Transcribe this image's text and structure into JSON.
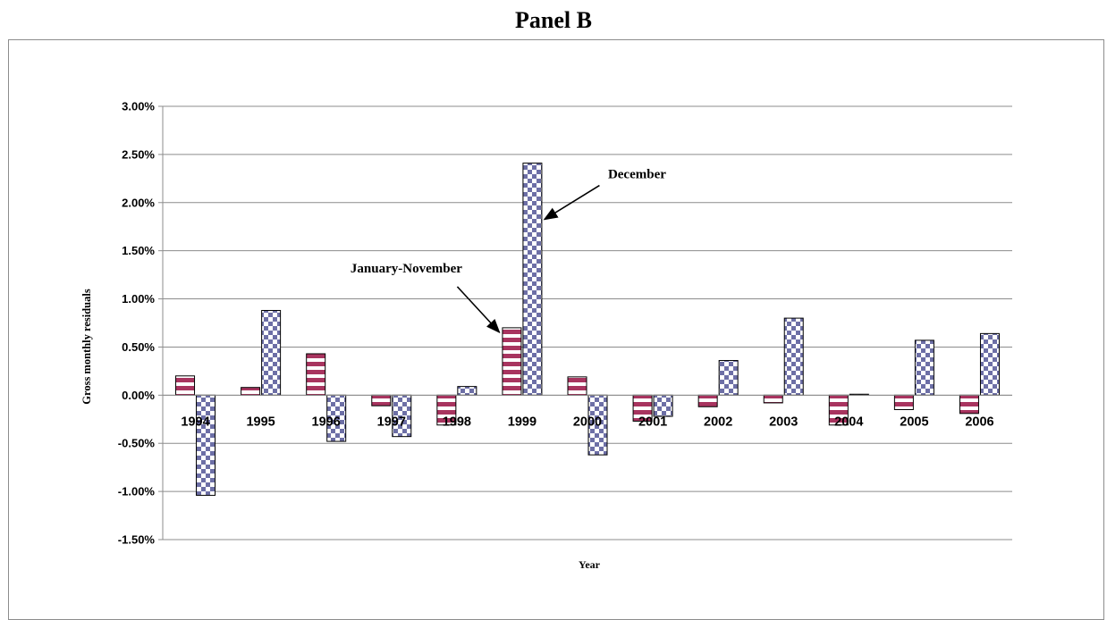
{
  "chart_data": {
    "type": "bar",
    "title": "Panel B",
    "xlabel": "Year",
    "ylabel": "Gross monthly residuals",
    "ylim": [
      -0.015,
      0.03
    ],
    "ytick_step": 0.005,
    "grid": true,
    "categories": [
      "1994",
      "1995",
      "1996",
      "1997",
      "1998",
      "1999",
      "2000",
      "2001",
      "2002",
      "2003",
      "2004",
      "2005",
      "2006"
    ],
    "series": [
      {
        "name": "January-November",
        "color": "#a8345f",
        "pattern": "horizontal-stripes",
        "values": [
          0.002,
          0.0008,
          0.0043,
          -0.0011,
          -0.0031,
          0.007,
          0.0019,
          -0.0027,
          -0.0012,
          -0.0008,
          -0.0031,
          -0.0015,
          -0.0019
        ]
      },
      {
        "name": "December",
        "color": "#6d6fa6",
        "pattern": "checkerboard",
        "values": [
          -0.0104,
          0.0088,
          -0.0048,
          -0.0043,
          0.0009,
          0.0241,
          -0.0062,
          -0.0022,
          0.0036,
          0.008,
          0.0001,
          0.0057,
          0.0064
        ]
      }
    ],
    "annotations": [
      {
        "text": "December",
        "series": "December",
        "category": "1999"
      },
      {
        "text": "January-November",
        "series": "January-November",
        "category": "1999"
      }
    ]
  }
}
